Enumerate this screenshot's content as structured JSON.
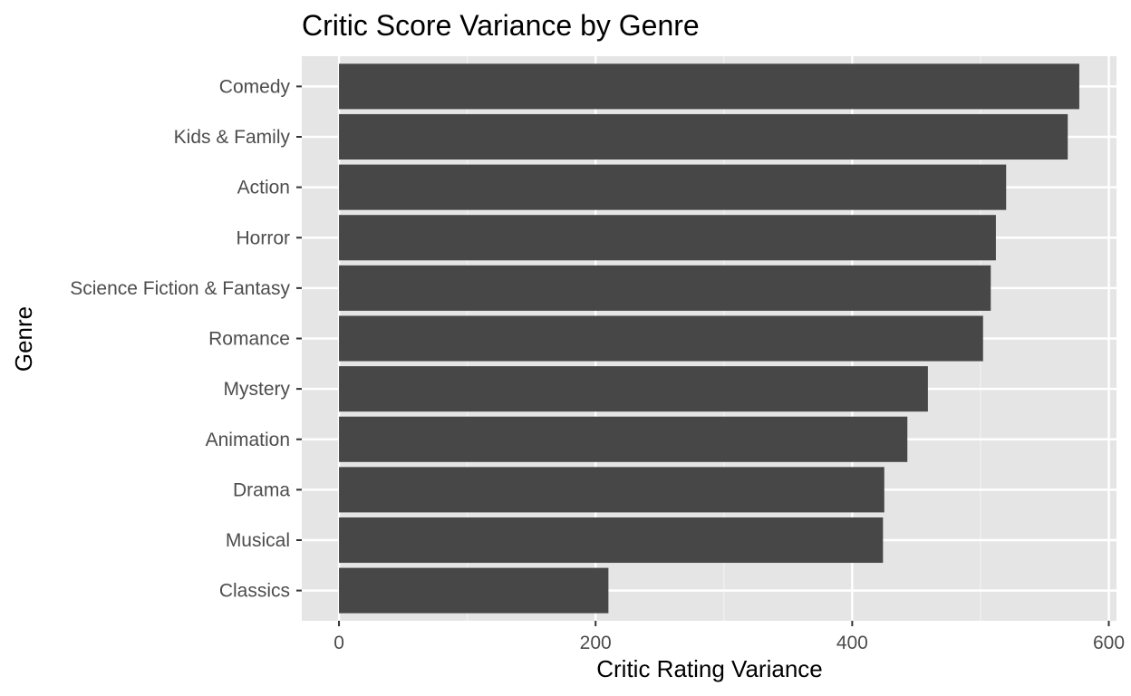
{
  "chart_data": {
    "type": "bar",
    "orientation": "horizontal",
    "title": "Critic Score Variance by Genre",
    "xlabel": "Critic Rating Variance",
    "ylabel": "Genre",
    "categories": [
      "Comedy",
      "Kids & Family",
      "Action",
      "Horror",
      "Science Fiction & Fantasy",
      "Romance",
      "Mystery",
      "Animation",
      "Drama",
      "Musical",
      "Classics"
    ],
    "values": [
      577,
      568,
      520,
      512,
      508,
      502,
      459,
      443,
      425,
      424,
      210
    ],
    "xlim": [
      -29,
      606
    ],
    "xticks": [
      0,
      200,
      400,
      600
    ],
    "grid": true,
    "bar_color": "#474747",
    "panel_color": "#e5e5e5"
  }
}
